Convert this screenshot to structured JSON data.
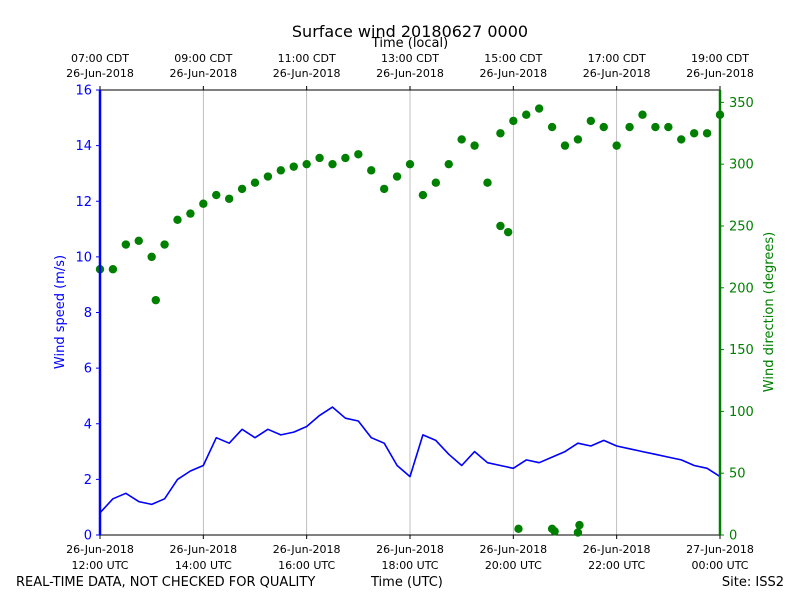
{
  "chart_data": {
    "type": "line+scatter",
    "title": "Surface wind 20180627 0000",
    "top_axis": {
      "label": "Time (local)",
      "ticks": [
        {
          "time": "07:00 CDT",
          "date": "26-Jun-2018"
        },
        {
          "time": "09:00 CDT",
          "date": "26-Jun-2018"
        },
        {
          "time": "11:00 CDT",
          "date": "26-Jun-2018"
        },
        {
          "time": "13:00 CDT",
          "date": "26-Jun-2018"
        },
        {
          "time": "15:00 CDT",
          "date": "26-Jun-2018"
        },
        {
          "time": "17:00 CDT",
          "date": "26-Jun-2018"
        },
        {
          "time": "19:00 CDT",
          "date": "26-Jun-2018"
        }
      ]
    },
    "bottom_axis": {
      "label": "Time (UTC)",
      "ticks": [
        {
          "date": "26-Jun-2018",
          "time": "12:00 UTC"
        },
        {
          "date": "26-Jun-2018",
          "time": "14:00 UTC"
        },
        {
          "date": "26-Jun-2018",
          "time": "16:00 UTC"
        },
        {
          "date": "26-Jun-2018",
          "time": "18:00 UTC"
        },
        {
          "date": "26-Jun-2018",
          "time": "20:00 UTC"
        },
        {
          "date": "26-Jun-2018",
          "time": "22:00 UTC"
        },
        {
          "date": "27-Jun-2018",
          "time": "00:00 UTC"
        }
      ],
      "range_hours_utc": [
        12,
        24
      ]
    },
    "left_axis": {
      "label": "Wind speed (m/s)",
      "color": "#0000ff",
      "ylim": [
        0,
        16
      ],
      "ticks": [
        "0",
        "2",
        "4",
        "6",
        "8",
        "10",
        "12",
        "14",
        "16"
      ]
    },
    "right_axis": {
      "label": "Wind direction (degrees)",
      "color": "#008000",
      "ylim": [
        0,
        360
      ],
      "ticks": [
        "0",
        "50",
        "100",
        "150",
        "200",
        "250",
        "300",
        "350"
      ]
    },
    "grid": "vertical",
    "series": [
      {
        "name": "Wind speed",
        "kind": "line",
        "axis": "left",
        "color": "#0000ff",
        "x_hours_utc": [
          12.0,
          12.25,
          12.5,
          12.75,
          13.0,
          13.25,
          13.5,
          13.75,
          14.0,
          14.25,
          14.5,
          14.75,
          15.0,
          15.25,
          15.5,
          15.75,
          16.0,
          16.25,
          16.5,
          16.75,
          17.0,
          17.25,
          17.5,
          17.75,
          18.0,
          18.25,
          18.5,
          18.75,
          19.0,
          19.25,
          19.5,
          19.75,
          20.0,
          20.25,
          20.5,
          20.75,
          21.0,
          21.25,
          21.5,
          21.75,
          22.0,
          22.25,
          22.5,
          22.75,
          23.0,
          23.25,
          23.5,
          23.75,
          24.0
        ],
        "values": [
          0.8,
          1.3,
          1.5,
          1.2,
          1.1,
          1.3,
          2.0,
          2.3,
          2.5,
          3.5,
          3.3,
          3.8,
          3.5,
          3.8,
          3.6,
          3.7,
          3.9,
          4.3,
          4.6,
          4.2,
          4.1,
          3.5,
          3.3,
          2.5,
          2.1,
          3.6,
          3.4,
          2.9,
          2.5,
          3.0,
          2.6,
          2.5,
          2.4,
          2.7,
          2.6,
          2.8,
          3.0,
          3.3,
          3.2,
          3.4,
          3.2,
          3.1,
          3.0,
          2.9,
          2.8,
          2.7,
          2.5,
          2.4,
          2.1
        ]
      },
      {
        "name": "Wind direction",
        "kind": "scatter",
        "axis": "right",
        "color": "#008000",
        "x_hours_utc": [
          12.0,
          12.25,
          12.5,
          12.75,
          13.0,
          13.25,
          13.5,
          13.75,
          14.0,
          14.25,
          14.5,
          14.75,
          15.0,
          15.25,
          15.5,
          15.75,
          16.0,
          16.25,
          16.5,
          16.75,
          17.0,
          17.25,
          17.5,
          17.75,
          18.0,
          18.25,
          18.5,
          18.75,
          19.0,
          19.25,
          19.5,
          19.75,
          20.0,
          20.25,
          20.5,
          20.75,
          21.0,
          21.25,
          21.5,
          21.75,
          22.0,
          22.25,
          22.5,
          22.75,
          23.0,
          23.25,
          23.5,
          23.75,
          24.0
        ],
        "values": [
          215,
          215,
          235,
          238,
          225,
          235,
          255,
          260,
          268,
          275,
          272,
          280,
          285,
          290,
          295,
          298,
          300,
          305,
          300,
          305,
          308,
          295,
          280,
          290,
          300,
          275,
          285,
          300,
          320,
          315,
          285,
          325,
          335,
          340,
          345,
          330,
          315,
          320,
          335,
          330,
          315,
          330,
          340,
          330,
          330,
          320,
          325,
          325,
          340
        ],
        "outliers": {
          "x_hours_utc": [
            13.08,
            19.75,
            19.9,
            20.1,
            20.75,
            20.8,
            21.25,
            21.28
          ],
          "values": [
            190,
            250,
            245,
            5,
            5,
            3,
            2,
            8
          ]
        }
      }
    ]
  },
  "footer": {
    "left": "REAL-TIME DATA, NOT CHECKED FOR QUALITY",
    "center": "Time (UTC)",
    "right": "Site: ISS2"
  }
}
